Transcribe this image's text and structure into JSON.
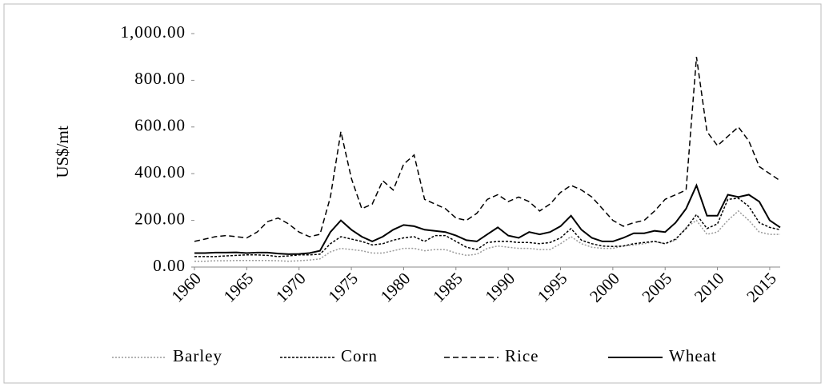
{
  "chart_data": {
    "type": "line",
    "y_label": "US$/mt",
    "x": [
      1960,
      1961,
      1962,
      1963,
      1964,
      1965,
      1966,
      1967,
      1968,
      1969,
      1970,
      1971,
      1972,
      1973,
      1974,
      1975,
      1976,
      1977,
      1978,
      1979,
      1980,
      1981,
      1982,
      1983,
      1984,
      1985,
      1986,
      1987,
      1988,
      1989,
      1990,
      1991,
      1992,
      1993,
      1994,
      1995,
      1996,
      1997,
      1998,
      1999,
      2000,
      2001,
      2002,
      2003,
      2004,
      2005,
      2006,
      2007,
      2008,
      2009,
      2010,
      2011,
      2012,
      2013,
      2014,
      2015,
      2016
    ],
    "series": [
      {
        "name": "Barley",
        "color": "#9a9a9a",
        "dash": "2,2",
        "values": [
          25,
          25,
          27,
          27,
          28,
          28,
          28,
          28,
          27,
          25,
          27,
          30,
          35,
          65,
          80,
          75,
          70,
          60,
          60,
          70,
          80,
          80,
          70,
          75,
          75,
          60,
          50,
          55,
          80,
          90,
          85,
          80,
          80,
          75,
          75,
          100,
          130,
          100,
          85,
          80,
          80,
          90,
          95,
          100,
          110,
          100,
          115,
          170,
          200,
          140,
          150,
          200,
          240,
          200,
          150,
          140,
          140
        ]
      },
      {
        "name": "Corn",
        "color": "#000000",
        "dash": "3,2",
        "values": [
          45,
          45,
          45,
          48,
          50,
          52,
          52,
          50,
          45,
          48,
          52,
          52,
          55,
          100,
          130,
          120,
          110,
          95,
          100,
          115,
          125,
          130,
          110,
          135,
          135,
          110,
          85,
          75,
          105,
          110,
          110,
          105,
          105,
          100,
          105,
          125,
          165,
          115,
          100,
          90,
          88,
          90,
          100,
          105,
          110,
          100,
          120,
          165,
          225,
          165,
          185,
          290,
          295,
          260,
          190,
          170,
          160
        ]
      },
      {
        "name": "Rice",
        "color": "#000000",
        "dash": "7,4",
        "values": [
          110,
          120,
          130,
          135,
          130,
          125,
          150,
          195,
          210,
          185,
          150,
          130,
          140,
          300,
          580,
          380,
          250,
          270,
          370,
          330,
          440,
          480,
          290,
          270,
          250,
          210,
          200,
          230,
          290,
          310,
          280,
          300,
          280,
          240,
          270,
          320,
          350,
          330,
          300,
          250,
          200,
          175,
          190,
          200,
          240,
          290,
          310,
          330,
          900,
          580,
          520,
          560,
          600,
          540,
          430,
          400,
          370
        ]
      },
      {
        "name": "Wheat",
        "color": "#000000",
        "dash": "none",
        "values": [
          60,
          60,
          62,
          62,
          63,
          60,
          62,
          62,
          58,
          55,
          56,
          60,
          70,
          150,
          200,
          160,
          130,
          110,
          130,
          160,
          180,
          175,
          160,
          155,
          150,
          135,
          115,
          110,
          140,
          170,
          135,
          125,
          150,
          140,
          150,
          175,
          220,
          160,
          125,
          110,
          110,
          125,
          145,
          145,
          155,
          150,
          190,
          250,
          350,
          220,
          220,
          310,
          300,
          310,
          280,
          200,
          170
        ]
      }
    ],
    "xlim": [
      1960,
      2016
    ],
    "xticks": [
      1960,
      1965,
      1970,
      1975,
      1980,
      1985,
      1990,
      1995,
      2000,
      2005,
      2010,
      2015
    ],
    "ylim": [
      0,
      1000
    ],
    "yticks": [
      {
        "value": 0,
        "label": "0.00"
      },
      {
        "value": 200,
        "label": "200.00"
      },
      {
        "value": 400,
        "label": "400.00"
      },
      {
        "value": 600,
        "label": "600.00"
      },
      {
        "value": 800,
        "label": "800.00"
      },
      {
        "value": 1000,
        "label": "1,000.00"
      }
    ],
    "legend": "bottom"
  }
}
